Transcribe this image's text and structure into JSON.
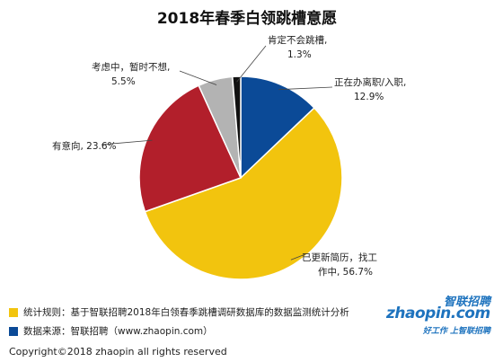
{
  "chart_data": {
    "type": "pie",
    "title": "2018年春季白领跳槽意愿",
    "slices": [
      {
        "label": "正在办离职/入职,",
        "value_text": "12.9%",
        "value": 12.9,
        "color": "#0b4a97"
      },
      {
        "label": "已更新简历，找工",
        "label2": "作中,",
        "value_text": "56.7%",
        "value": 56.7,
        "color": "#f2c40e"
      },
      {
        "label": "有意向,",
        "value_text": "23.6%",
        "value": 23.6,
        "color": "#b21f2b"
      },
      {
        "label": "考虑中，暂时不想,",
        "value_text": "5.5%",
        "value": 5.5,
        "color": "#b3b3b3"
      },
      {
        "label": "肯定不会跳槽,",
        "value_text": "1.3%",
        "value": 1.3,
        "color": "#111111"
      }
    ]
  },
  "footer": {
    "rule_text": "统计规则：基于智联招聘2018年白领春季跳槽调研数据库的数据监测统计分析",
    "rule_color": "#f2c40e",
    "source_text": "数据来源：智联招聘（www.zhaopin.com）",
    "source_color": "#0b4a97",
    "copyright": "Copyright©2018 zhaopin all rights reserved"
  },
  "logo": {
    "cn": "智联招聘",
    "en": "zhaopin.com",
    "tagline": "好工作  上智联招聘"
  }
}
